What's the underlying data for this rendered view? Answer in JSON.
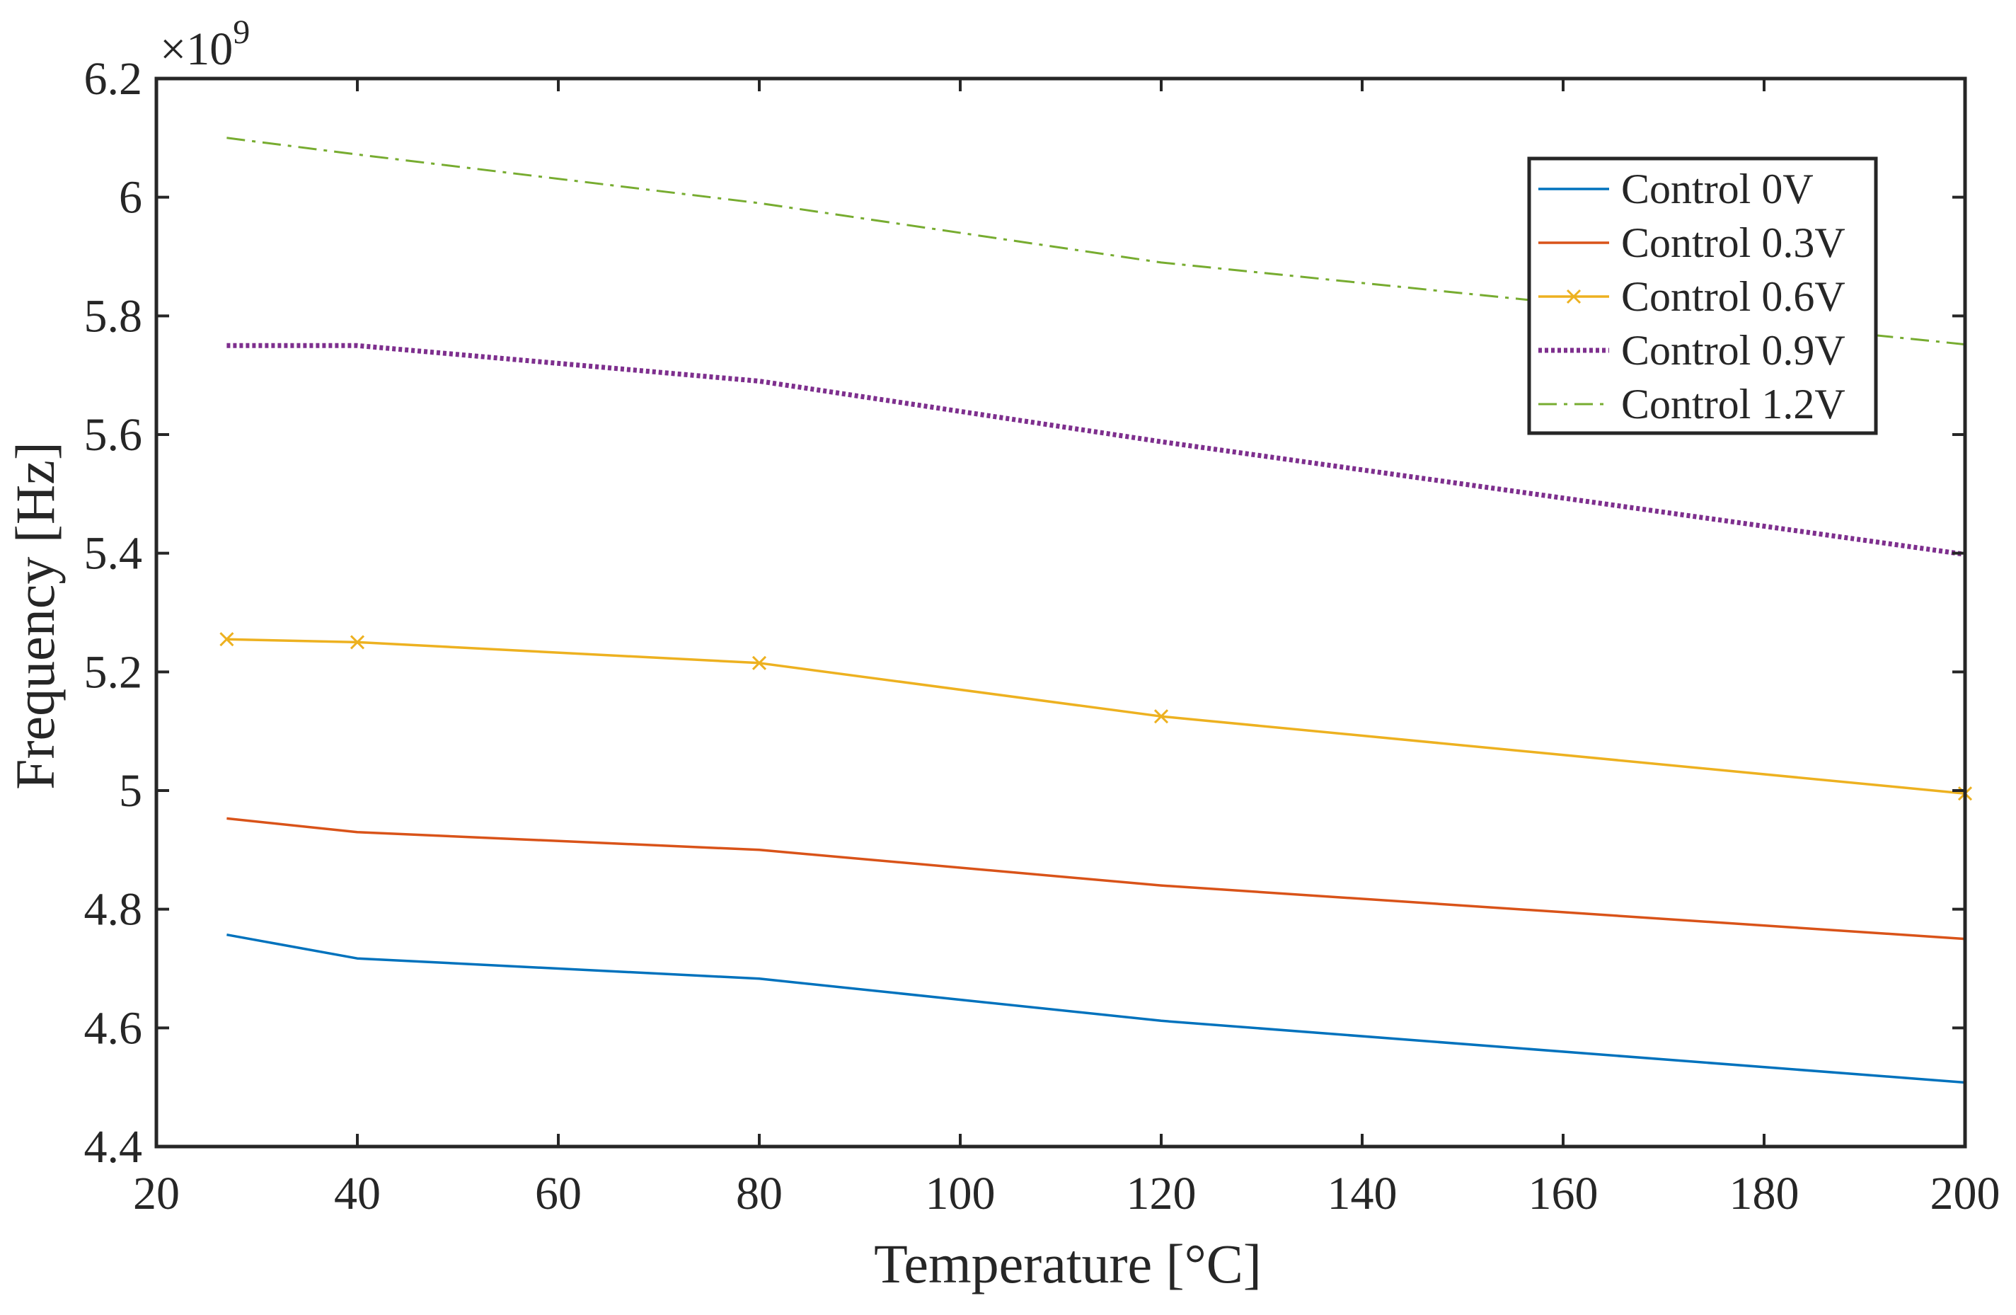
{
  "chart_data": {
    "type": "line",
    "xlabel": "Temperature [°C]",
    "ylabel": "Frequency [Hz]",
    "y_exponent_base": "×10",
    "y_exponent_power": "9",
    "xlim": [
      20,
      200
    ],
    "ylim": [
      4.4,
      6.2
    ],
    "x_ticks": [
      20,
      40,
      60,
      80,
      100,
      120,
      140,
      160,
      180,
      200
    ],
    "x_tick_labels": [
      "20",
      "40",
      "60",
      "80",
      "100",
      "120",
      "140",
      "160",
      "180",
      "200"
    ],
    "y_ticks": [
      4.4,
      4.6,
      4.8,
      5.0,
      5.2,
      5.4,
      5.6,
      5.8,
      6.0,
      6.2
    ],
    "y_tick_labels": [
      "4.4",
      "4.6",
      "4.8",
      "5",
      "5.2",
      "5.4",
      "5.6",
      "5.8",
      "6",
      "6.2"
    ],
    "grid": false,
    "legend_position": "top-right",
    "x": [
      27,
      40,
      80,
      120,
      200
    ],
    "series": [
      {
        "name": "Control 0V",
        "color": "#0072bd",
        "style": "solid",
        "marker": "none",
        "values": [
          4.757,
          4.717,
          4.683,
          4.612,
          4.508
        ]
      },
      {
        "name": "Control 0.3V",
        "color": "#d95319",
        "style": "solid",
        "marker": "none",
        "values": [
          4.953,
          4.93,
          4.9,
          4.84,
          4.75
        ]
      },
      {
        "name": "Control 0.6V",
        "color": "#edb120",
        "style": "solid",
        "marker": "x",
        "values": [
          5.255,
          5.25,
          5.215,
          5.125,
          4.995
        ]
      },
      {
        "name": "Control 0.9V",
        "color": "#7e2f8e",
        "style": "dotted",
        "marker": "none",
        "values": [
          5.75,
          5.75,
          5.69,
          5.588,
          5.398
        ]
      },
      {
        "name": "Control 1.2V",
        "color": "#77ac30",
        "style": "dashdot",
        "marker": "none",
        "values": [
          6.1,
          6.072,
          5.99,
          5.89,
          5.752
        ]
      }
    ]
  }
}
